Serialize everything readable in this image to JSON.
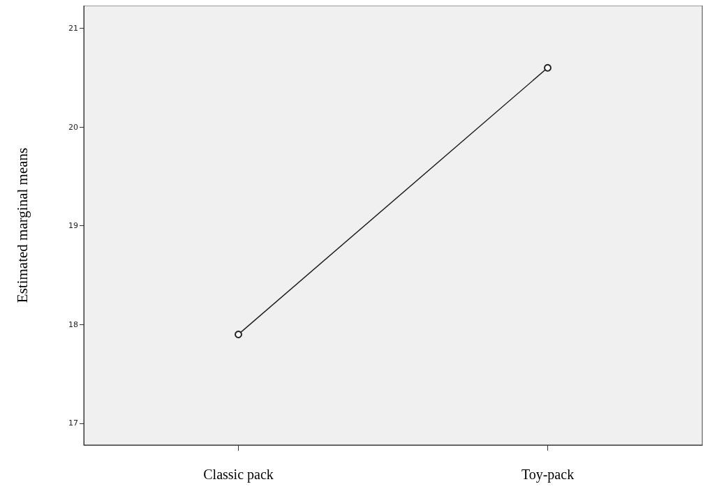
{
  "chart_data": {
    "type": "line",
    "ylabel": "Estimated marginal means",
    "categories": [
      "Classic pack",
      "Toy-pack"
    ],
    "series": [
      {
        "color": "#222222",
        "values": [
          17.9,
          20.6
        ]
      }
    ],
    "ylim": [
      16.78,
      21.23
    ],
    "yticks": [
      17,
      18,
      19,
      20,
      21
    ],
    "grid": false,
    "marker": "circle",
    "line_style": "solid"
  }
}
